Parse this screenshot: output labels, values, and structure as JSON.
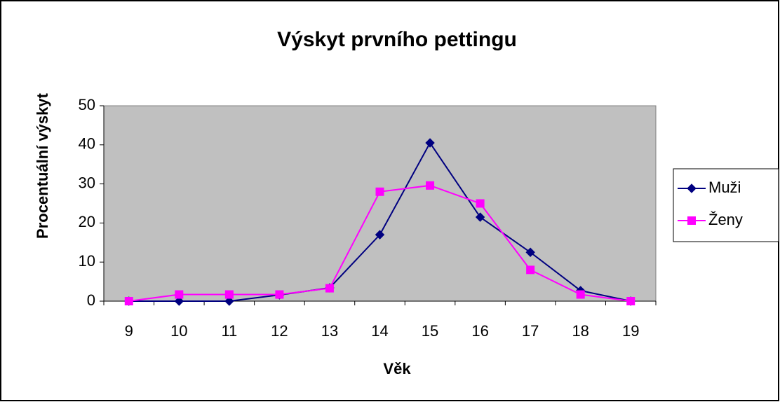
{
  "chart_data": {
    "type": "line",
    "title": "Výskyt prvního pettingu",
    "xlabel": "Věk",
    "ylabel": "Procentuální výskyt",
    "categories": [
      "9",
      "10",
      "11",
      "12",
      "13",
      "14",
      "15",
      "16",
      "17",
      "18",
      "19"
    ],
    "series": [
      {
        "name": "Muži",
        "color": "#000080",
        "marker": "diamond",
        "values": [
          0,
          0,
          0,
          1.6,
          3.4,
          17,
          40.5,
          21.5,
          12.5,
          2.7,
          0
        ]
      },
      {
        "name": "Ženy",
        "color": "#ff00ff",
        "marker": "square",
        "values": [
          0,
          1.7,
          1.7,
          1.7,
          3.3,
          28,
          29.6,
          25,
          8,
          1.7,
          0
        ]
      }
    ],
    "ylim": [
      0,
      50
    ],
    "yticks": [
      0,
      10,
      20,
      30,
      40,
      50
    ],
    "grid": false,
    "legend": "right",
    "plot_background": "#c0c0c0"
  }
}
